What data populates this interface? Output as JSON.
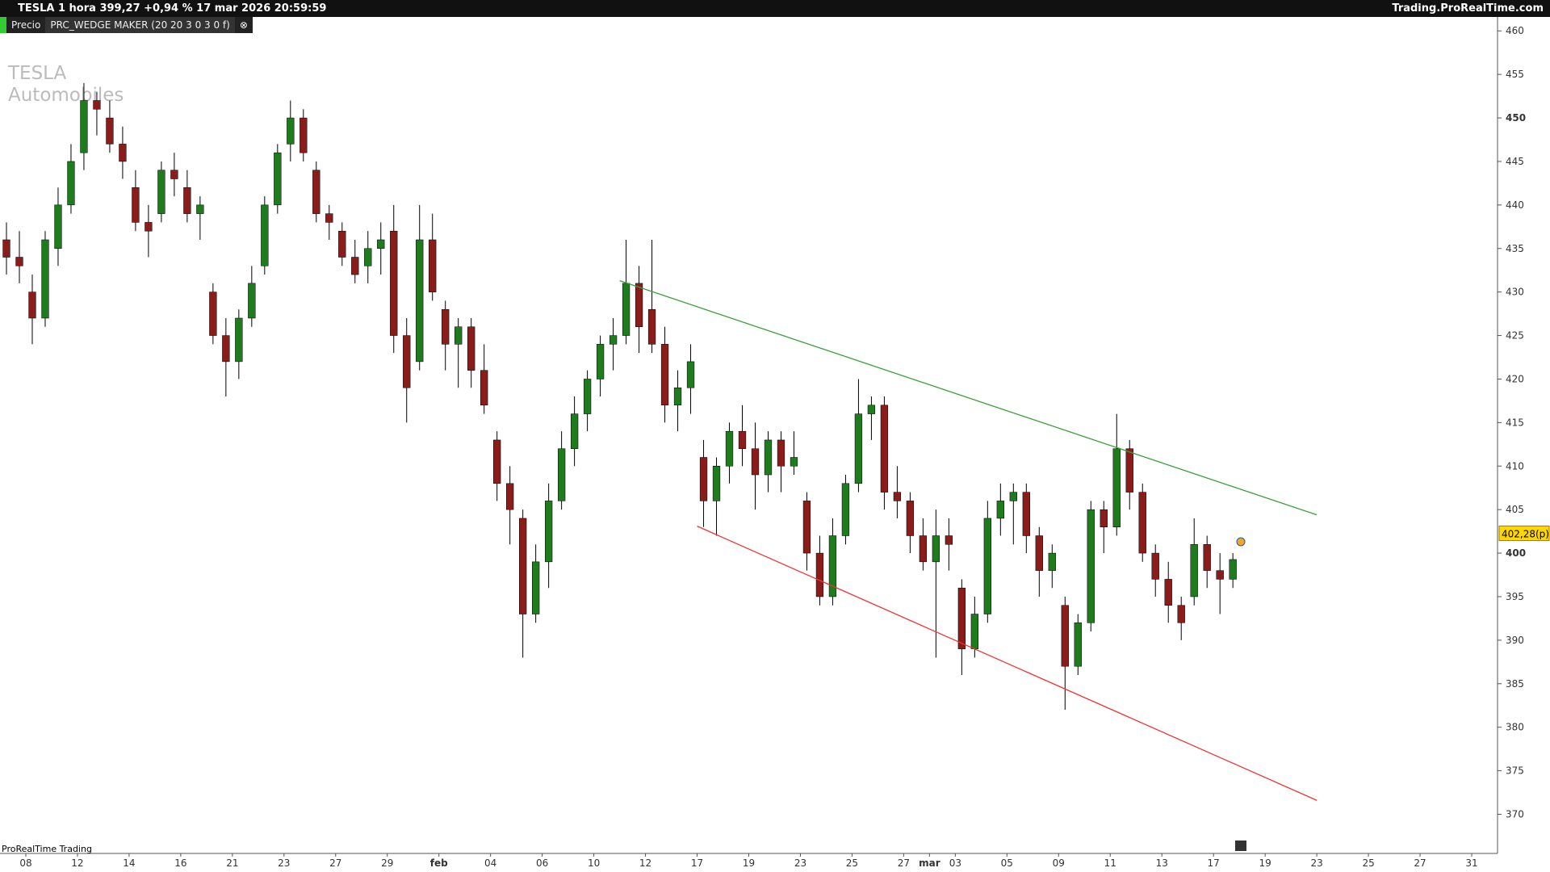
{
  "header": {
    "title": "TESLA 1 hora 399,27 +0,94 % 17 mar 2026 20:59:59",
    "site": "Trading.ProRealTime.com",
    "price_tab": "Precio",
    "indicator_tab": "PRC_WEDGE MAKER (20 20 3 0 3 0 f)"
  },
  "chart_data": {
    "type": "candlestick",
    "watermark": [
      "TESLA",
      "Automobiles"
    ],
    "footer": "ProRealTime Trading",
    "categories": [
      null,
      null,
      "08",
      null,
      null,
      null,
      "12",
      null,
      null,
      null,
      "14",
      null,
      null,
      null,
      "16",
      null,
      null,
      null,
      "21",
      null,
      null,
      null,
      "23",
      null,
      null,
      null,
      "27",
      null,
      null,
      null,
      "29",
      null,
      null,
      null,
      "feb",
      null,
      null,
      null,
      "04",
      null,
      null,
      null,
      "06",
      null,
      null,
      null,
      "10",
      null,
      null,
      null,
      "12",
      null,
      null,
      null,
      "17",
      null,
      null,
      null,
      "19",
      null,
      null,
      null,
      "23",
      null,
      null,
      null,
      "25",
      null,
      null,
      null,
      "27",
      null,
      "mar",
      null,
      "03",
      null,
      null,
      null,
      "05",
      null,
      null,
      null,
      "09",
      null,
      null,
      null,
      "11",
      null,
      null,
      null,
      "13",
      null,
      null,
      null,
      "17",
      null,
      null,
      null,
      "19",
      null,
      null,
      null,
      "23",
      null,
      null,
      null,
      "25",
      null,
      null,
      null,
      "27",
      null,
      null,
      null,
      "31",
      null
    ],
    "open": [
      436,
      434,
      430,
      427,
      435,
      440,
      446,
      452,
      450,
      447,
      442,
      438,
      439,
      444,
      442,
      439,
      430,
      425,
      422,
      427,
      433,
      440,
      447,
      450,
      444,
      439,
      437,
      434,
      433,
      435,
      437,
      425,
      422,
      436,
      428,
      424,
      426,
      421,
      413,
      408,
      404,
      393,
      399,
      406,
      412,
      416,
      420,
      424,
      425,
      431,
      428,
      424,
      417,
      419,
      411,
      406,
      410,
      414,
      412,
      409,
      413,
      410,
      406,
      400,
      395,
      402,
      408,
      416,
      417,
      407,
      406,
      402,
      399,
      402,
      396,
      389,
      393,
      404,
      406,
      407,
      402,
      398,
      394,
      387,
      392,
      405,
      403,
      412,
      407,
      400,
      397,
      394,
      395,
      401,
      398,
      397,
      null,
      null,
      null,
      null,
      null,
      null,
      null,
      null,
      null,
      null,
      null,
      null,
      null,
      null,
      null,
      null,
      null,
      null,
      null,
      null
    ],
    "high": [
      438,
      437,
      432,
      437,
      442,
      447,
      454,
      453,
      452,
      449,
      444,
      440,
      445,
      446,
      444,
      441,
      431,
      427,
      428,
      433,
      441,
      447,
      452,
      451,
      445,
      440,
      438,
      436,
      437,
      438,
      440,
      427,
      440,
      439,
      429,
      427,
      427,
      424,
      414,
      410,
      405,
      401,
      408,
      414,
      418,
      421,
      425,
      427,
      436,
      433,
      436,
      426,
      421,
      424,
      413,
      411,
      415,
      417,
      415,
      414,
      414,
      414,
      407,
      402,
      404,
      409,
      420,
      418,
      418,
      410,
      407,
      404,
      405,
      404,
      397,
      395,
      406,
      408,
      408,
      408,
      403,
      401,
      395,
      393,
      406,
      406,
      416,
      413,
      408,
      401,
      399,
      395,
      404,
      402,
      400,
      400,
      null,
      null,
      null,
      null,
      null,
      null,
      null,
      null,
      null,
      null,
      null,
      null,
      null,
      null,
      null,
      null,
      null,
      null,
      null,
      null
    ],
    "low": [
      432,
      431,
      424,
      426,
      433,
      439,
      444,
      448,
      446,
      443,
      437,
      434,
      438,
      441,
      438,
      436,
      424,
      418,
      420,
      426,
      432,
      439,
      445,
      445,
      438,
      436,
      433,
      431,
      431,
      432,
      423,
      415,
      421,
      429,
      421,
      419,
      419,
      416,
      406,
      401,
      388,
      392,
      396,
      405,
      410,
      414,
      418,
      421,
      424,
      423,
      423,
      415,
      414,
      416,
      403,
      402,
      408,
      410,
      405,
      407,
      407,
      409,
      398,
      394,
      394,
      401,
      407,
      413,
      405,
      404,
      400,
      398,
      388,
      398,
      386,
      388,
      392,
      402,
      401,
      400,
      395,
      396,
      382,
      386,
      391,
      400,
      402,
      405,
      399,
      395,
      392,
      390,
      394,
      396,
      393,
      396,
      null,
      null,
      null,
      null,
      null,
      null,
      null,
      null,
      null,
      null,
      null,
      null,
      null,
      null,
      null,
      null,
      null,
      null,
      null,
      null
    ],
    "close": [
      434,
      433,
      427,
      436,
      440,
      445,
      452,
      451,
      447,
      445,
      438,
      437,
      444,
      443,
      439,
      440,
      425,
      422,
      427,
      431,
      440,
      446,
      450,
      446,
      439,
      438,
      434,
      432,
      435,
      436,
      425,
      419,
      436,
      430,
      424,
      426,
      421,
      417,
      408,
      405,
      393,
      399,
      406,
      412,
      416,
      420,
      424,
      425,
      431,
      426,
      424,
      417,
      419,
      422,
      406,
      410,
      414,
      412,
      409,
      413,
      410,
      411,
      400,
      395,
      402,
      408,
      416,
      417,
      407,
      406,
      402,
      399,
      402,
      401,
      389,
      393,
      404,
      406,
      407,
      402,
      398,
      400,
      387,
      392,
      405,
      403,
      412,
      407,
      400,
      397,
      394,
      392,
      401,
      398,
      397,
      399.27,
      null,
      null,
      null,
      null,
      null,
      null,
      null,
      null,
      null,
      null,
      null,
      null,
      null,
      null,
      null,
      null,
      null,
      null,
      null,
      null
    ],
    "up_color": "#1e7b1e",
    "down_color": "#8a1c1c",
    "lines": [
      {
        "color": "#3aa03a",
        "x": [
          48,
          102
        ],
        "values": [
          431.3,
          404.4
        ]
      },
      {
        "color": "#f03434",
        "x": [
          54,
          102
        ],
        "values": [
          403.1,
          371.6
        ]
      }
    ],
    "last_price": {
      "value": 402.28,
      "label": "402,28(p)"
    },
    "ylim": [
      365.5,
      461.6
    ],
    "yticks": [
      370,
      375,
      380,
      385,
      390,
      395,
      400,
      405,
      410,
      415,
      420,
      425,
      430,
      435,
      440,
      445,
      450,
      455,
      460
    ],
    "bold_ticks": [
      400,
      450
    ]
  }
}
